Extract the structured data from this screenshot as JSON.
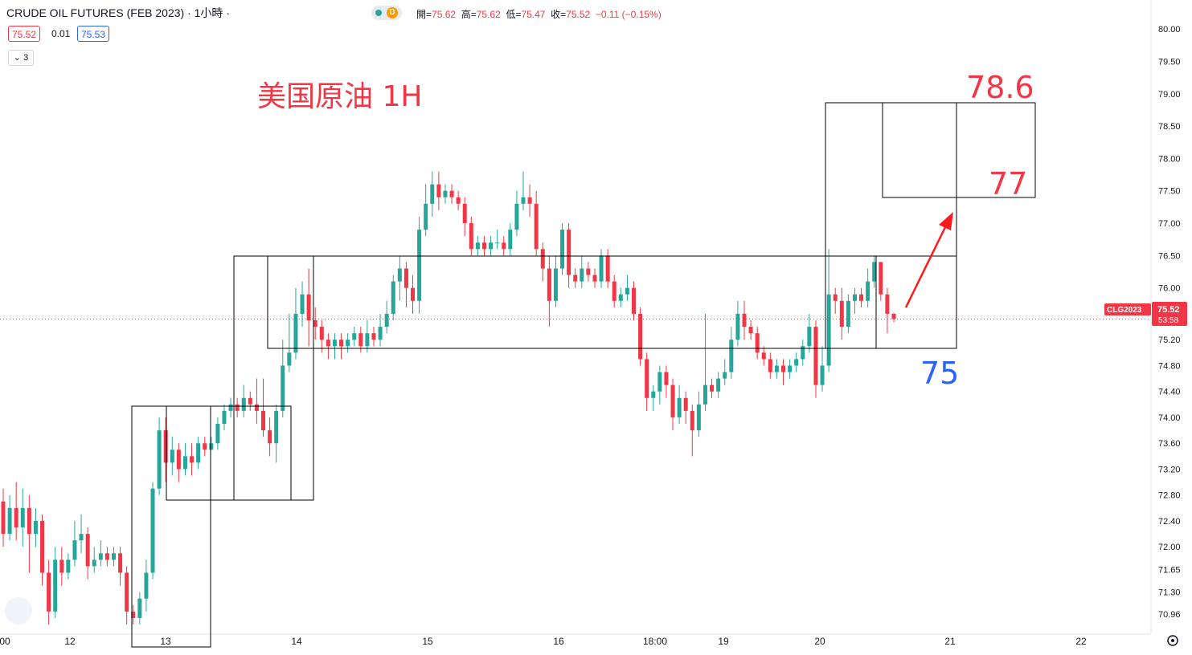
{
  "header": {
    "symbol_title": "CRUDE OIL FUTURES (FEB 2023)",
    "interval": "· 1小時 ·",
    "ohlc_text": {
      "open_label": "開=",
      "open": "75.62",
      "high_label": "高=",
      "high": "75.62",
      "low_label": "低=",
      "low": "75.47",
      "close_label": "收=",
      "close": "75.52",
      "change": "−0.11 (−0.15%)"
    },
    "session_badge": "D"
  },
  "quote": {
    "bid": "75.52",
    "spread": "0.01",
    "ask": "75.53",
    "indicators_count": "3"
  },
  "colors": {
    "up": "#26a69a",
    "down": "#f23645",
    "arrow": "#ff1a1a",
    "blue_label": "#2962ff"
  },
  "chart_data": {
    "type": "candlestick",
    "title": "美国原油 1H",
    "y_axis": {
      "ylim": [
        70.8,
        80.2
      ],
      "ticks": [
        "80.00",
        "79.50",
        "79.00",
        "78.50",
        "78.00",
        "77.50",
        "77.00",
        "76.50",
        "76.00",
        "75.60",
        "75.20",
        "74.80",
        "74.40",
        "74.00",
        "73.60",
        "73.20",
        "72.80",
        "72.40",
        "72.00",
        "71.65",
        "71.30",
        "70.96"
      ]
    },
    "x_axis": {
      "ticks": [
        "00",
        "12",
        "13",
        "14",
        "15",
        "16",
        "18:00",
        "19",
        "20",
        "21",
        "22"
      ]
    },
    "current_price": {
      "symbol": "CLG2023",
      "price": "75.52",
      "countdown": "53:58",
      "value": 75.52
    },
    "annotations": {
      "target_high": "78.6",
      "target_mid": "77",
      "support": "75"
    },
    "candles": [
      [
        72.7,
        72.2,
        72.9,
        72.0
      ],
      [
        72.2,
        72.6,
        72.8,
        72.1
      ],
      [
        72.6,
        72.3,
        73.0,
        72.1
      ],
      [
        72.3,
        72.6,
        72.9,
        72.0
      ],
      [
        72.6,
        72.2,
        72.8,
        71.6
      ],
      [
        72.2,
        72.4,
        72.6,
        72.0
      ],
      [
        72.4,
        71.6,
        72.5,
        71.4
      ],
      [
        71.6,
        71.0,
        71.8,
        70.8
      ],
      [
        71.0,
        71.8,
        72.0,
        70.9
      ],
      [
        71.8,
        71.6,
        72.0,
        71.4
      ],
      [
        71.6,
        71.8,
        71.9,
        71.5
      ],
      [
        71.8,
        72.1,
        72.4,
        71.7
      ],
      [
        72.1,
        72.2,
        72.5,
        71.9
      ],
      [
        72.2,
        71.7,
        72.3,
        71.5
      ],
      [
        71.7,
        71.8,
        72.0,
        71.6
      ],
      [
        71.8,
        71.9,
        72.1,
        71.7
      ],
      [
        71.9,
        71.8,
        72.0,
        71.7
      ],
      [
        71.8,
        71.9,
        72.0,
        71.7
      ],
      [
        71.9,
        71.6,
        72.0,
        71.4
      ],
      [
        71.6,
        71.0,
        71.7,
        70.8
      ],
      [
        71.0,
        70.9,
        71.1,
        70.8
      ],
      [
        70.9,
        71.2,
        71.3,
        70.8
      ],
      [
        71.2,
        71.6,
        71.8,
        71.0
      ],
      [
        71.6,
        72.9,
        73.0,
        71.5
      ],
      [
        72.9,
        73.8,
        74.0,
        72.8
      ],
      [
        73.8,
        73.3,
        74.0,
        73.0
      ],
      [
        73.3,
        73.5,
        73.7,
        73.1
      ],
      [
        73.5,
        73.2,
        73.6,
        73.0
      ],
      [
        73.2,
        73.4,
        73.6,
        73.1
      ],
      [
        73.4,
        73.3,
        73.6,
        73.1
      ],
      [
        73.3,
        73.6,
        73.7,
        73.2
      ],
      [
        73.6,
        73.5,
        73.7,
        73.4
      ],
      [
        73.5,
        73.6,
        73.7,
        73.5
      ],
      [
        73.6,
        73.9,
        74.0,
        73.5
      ],
      [
        73.9,
        74.1,
        74.2,
        73.8
      ],
      [
        74.1,
        74.2,
        74.3,
        74.0
      ],
      [
        74.2,
        74.1,
        74.3,
        74.0
      ],
      [
        74.1,
        74.3,
        74.5,
        74.0
      ],
      [
        74.3,
        74.2,
        74.4,
        74.1
      ],
      [
        74.2,
        74.1,
        74.6,
        73.9
      ],
      [
        74.1,
        73.8,
        74.6,
        73.7
      ],
      [
        73.8,
        73.6,
        74.0,
        73.4
      ],
      [
        73.6,
        74.1,
        74.2,
        73.3
      ],
      [
        74.1,
        74.8,
        75.2,
        74.0
      ],
      [
        74.8,
        75.0,
        75.6,
        74.7
      ],
      [
        75.0,
        75.6,
        76.0,
        74.9
      ],
      [
        75.6,
        75.9,
        76.1,
        75.4
      ],
      [
        75.9,
        75.5,
        76.3,
        75.1
      ],
      [
        75.5,
        75.4,
        75.7,
        75.2
      ],
      [
        75.4,
        75.2,
        75.5,
        75.0
      ],
      [
        75.2,
        75.1,
        75.3,
        74.9
      ],
      [
        75.1,
        75.2,
        75.3,
        74.9
      ],
      [
        75.2,
        75.1,
        75.3,
        74.9
      ],
      [
        75.1,
        75.2,
        75.3,
        75.0
      ],
      [
        75.2,
        75.3,
        75.4,
        75.1
      ],
      [
        75.3,
        75.1,
        75.4,
        75.0
      ],
      [
        75.1,
        75.3,
        75.5,
        75.0
      ],
      [
        75.3,
        75.2,
        75.4,
        75.1
      ],
      [
        75.2,
        75.4,
        75.6,
        75.1
      ],
      [
        75.4,
        75.6,
        75.8,
        75.3
      ],
      [
        75.6,
        76.1,
        76.2,
        75.5
      ],
      [
        76.1,
        76.3,
        76.5,
        75.8
      ],
      [
        76.3,
        76.0,
        76.4,
        75.7
      ],
      [
        76.0,
        75.8,
        76.2,
        75.6
      ],
      [
        75.8,
        76.9,
        77.1,
        75.6
      ],
      [
        76.9,
        77.3,
        77.6,
        76.8
      ],
      [
        77.3,
        77.6,
        77.8,
        77.1
      ],
      [
        77.6,
        77.4,
        77.8,
        77.2
      ],
      [
        77.4,
        77.5,
        77.6,
        77.3
      ],
      [
        77.5,
        77.4,
        77.6,
        77.3
      ],
      [
        77.4,
        77.3,
        77.5,
        77.2
      ],
      [
        77.3,
        77.0,
        77.4,
        76.8
      ],
      [
        77.0,
        76.6,
        77.1,
        76.5
      ],
      [
        76.6,
        76.7,
        76.8,
        76.5
      ],
      [
        76.7,
        76.6,
        76.8,
        76.5
      ],
      [
        76.6,
        76.7,
        76.8,
        76.5
      ],
      [
        76.7,
        76.7,
        76.9,
        76.6
      ],
      [
        76.7,
        76.6,
        76.8,
        76.5
      ],
      [
        76.6,
        76.9,
        77.0,
        76.5
      ],
      [
        76.9,
        77.3,
        77.5,
        76.8
      ],
      [
        77.3,
        77.4,
        77.8,
        77.2
      ],
      [
        77.4,
        77.3,
        77.6,
        77.1
      ],
      [
        77.3,
        76.6,
        77.5,
        76.5
      ],
      [
        76.6,
        76.3,
        76.7,
        76.1
      ],
      [
        76.3,
        75.8,
        76.5,
        75.4
      ],
      [
        75.8,
        76.3,
        76.5,
        75.7
      ],
      [
        76.3,
        76.9,
        77.0,
        76.2
      ],
      [
        76.9,
        76.2,
        77.0,
        76.0
      ],
      [
        76.2,
        76.1,
        76.3,
        76.0
      ],
      [
        76.1,
        76.3,
        76.5,
        76.0
      ],
      [
        76.3,
        76.2,
        76.4,
        76.1
      ],
      [
        76.2,
        76.1,
        76.3,
        76.0
      ],
      [
        76.1,
        76.5,
        76.6,
        76.0
      ],
      [
        76.5,
        76.1,
        76.6,
        76.0
      ],
      [
        76.1,
        75.8,
        76.2,
        75.7
      ],
      [
        75.8,
        75.9,
        76.0,
        75.7
      ],
      [
        75.9,
        76.0,
        76.2,
        75.8
      ],
      [
        76.0,
        75.6,
        76.1,
        75.5
      ],
      [
        75.6,
        74.9,
        75.7,
        74.8
      ],
      [
        74.9,
        74.3,
        75.0,
        74.1
      ],
      [
        74.3,
        74.4,
        74.5,
        74.1
      ],
      [
        74.4,
        74.7,
        74.8,
        74.2
      ],
      [
        74.7,
        74.5,
        74.8,
        74.3
      ],
      [
        74.5,
        74.0,
        74.6,
        73.8
      ],
      [
        74.0,
        74.3,
        74.5,
        73.9
      ],
      [
        74.3,
        74.1,
        74.4,
        73.9
      ],
      [
        74.1,
        73.8,
        74.2,
        73.4
      ],
      [
        73.8,
        74.2,
        74.4,
        73.7
      ],
      [
        74.2,
        74.5,
        75.6,
        74.1
      ],
      [
        74.5,
        74.4,
        74.6,
        74.3
      ],
      [
        74.4,
        74.6,
        74.7,
        74.3
      ],
      [
        74.6,
        74.7,
        74.9,
        74.5
      ],
      [
        74.7,
        75.2,
        75.4,
        74.6
      ],
      [
        75.2,
        75.6,
        75.8,
        75.1
      ],
      [
        75.6,
        75.4,
        75.8,
        75.2
      ],
      [
        75.4,
        75.3,
        75.5,
        75.2
      ],
      [
        75.3,
        75.0,
        75.4,
        74.9
      ],
      [
        75.0,
        74.9,
        75.1,
        74.8
      ],
      [
        74.9,
        74.7,
        75.0,
        74.6
      ],
      [
        74.7,
        74.8,
        74.9,
        74.6
      ],
      [
        74.8,
        74.7,
        74.9,
        74.5
      ],
      [
        74.7,
        74.8,
        74.9,
        74.6
      ],
      [
        74.8,
        74.9,
        75.0,
        74.7
      ],
      [
        74.9,
        75.1,
        75.2,
        74.8
      ],
      [
        75.1,
        75.4,
        75.6,
        75.0
      ],
      [
        75.4,
        74.5,
        75.5,
        74.3
      ],
      [
        74.5,
        74.8,
        75.1,
        74.4
      ],
      [
        74.8,
        75.9,
        76.6,
        74.7
      ],
      [
        75.9,
        75.8,
        76.0,
        75.6
      ],
      [
        75.8,
        75.4,
        76.0,
        75.2
      ],
      [
        75.4,
        75.8,
        75.9,
        75.3
      ],
      [
        75.8,
        75.9,
        76.0,
        75.6
      ],
      [
        75.9,
        75.8,
        76.0,
        75.7
      ],
      [
        75.8,
        76.1,
        76.3,
        75.7
      ],
      [
        76.1,
        76.4,
        76.5,
        76.0
      ],
      [
        76.4,
        75.9,
        76.4,
        75.8
      ],
      [
        75.9,
        75.6,
        76.0,
        75.3
      ],
      [
        75.6,
        75.52,
        75.62,
        75.47
      ]
    ]
  }
}
